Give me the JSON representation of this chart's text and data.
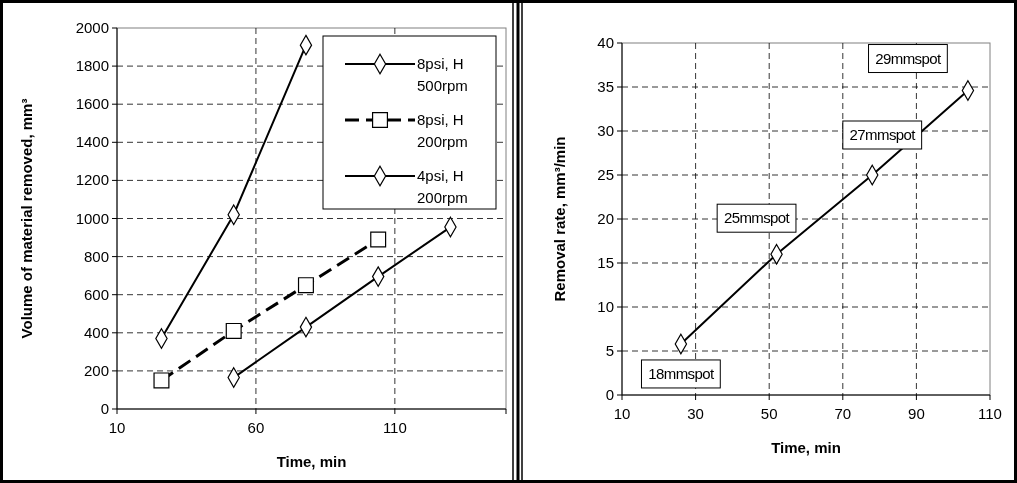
{
  "chart_data": [
    {
      "type": "line",
      "xlabel": "Time, min",
      "ylabel": "Volume of material removed, mm³",
      "xlim": [
        10,
        150
      ],
      "xticks": [
        10,
        60,
        110,
        {
          "value": 150,
          "label": null
        }
      ],
      "ylim": [
        0,
        2000
      ],
      "yticks": [
        0,
        200,
        400,
        600,
        800,
        1000,
        1200,
        1400,
        1600,
        1800,
        2000
      ],
      "grid": true,
      "legend": "top right",
      "series": [
        {
          "name": "8psi, H 500rpm",
          "color": "#000000",
          "marker": "diamond",
          "line_style": "solid",
          "x": [
            26,
            52,
            78
          ],
          "values": [
            370,
            1020,
            1910
          ]
        },
        {
          "name": "8psi, H 200rpm",
          "color": "#000000",
          "marker": "square",
          "line_style": "dashed",
          "x": [
            26,
            52,
            78,
            104
          ],
          "values": [
            150,
            410,
            650,
            890
          ]
        },
        {
          "name": "4psi, H 200rpm",
          "color": "#000000",
          "marker": "diamond",
          "line_style": "solid",
          "x": [
            52,
            78,
            104,
            130
          ],
          "values": [
            165,
            430,
            695,
            955
          ]
        }
      ]
    },
    {
      "type": "line",
      "xlabel": "Time, min",
      "ylabel": "Removal rate, mm³/min",
      "xlim": [
        10,
        110
      ],
      "xticks": [
        10,
        30,
        50,
        70,
        90,
        110
      ],
      "ylim": [
        0,
        40
      ],
      "yticks": [
        0,
        5,
        10,
        15,
        20,
        25,
        30,
        35,
        40
      ],
      "grid": true,
      "marker": "diamond",
      "line_style": "solid",
      "x": [
        26,
        52,
        78,
        104
      ],
      "values": [
        5.8,
        16,
        25,
        34.6
      ],
      "color": "#000000",
      "annotations": [
        {
          "text": "18mmspot",
          "x": 26,
          "y": 5.8
        },
        {
          "text": "25mmspot",
          "x": 52,
          "y": 16
        },
        {
          "text": "27mmspot",
          "x": 78,
          "y": 25
        },
        {
          "text": "29mmspot",
          "x": 104,
          "y": 34.6
        }
      ]
    }
  ]
}
